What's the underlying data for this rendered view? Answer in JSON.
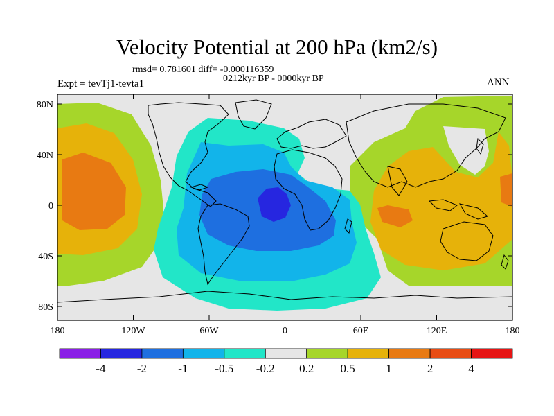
{
  "title": "Velocity Potential at 200 hPa (km2/s)",
  "stats_line": "rmsd= 0.781601 diff= -0.000116359",
  "period": "0212kyr BP - 0000kyr BP",
  "experiment": "Expt = tevTj1-tevta1",
  "season": "ANN",
  "lat_labels": [
    "80N",
    "40N",
    "0",
    "40S",
    "80S"
  ],
  "lon_labels": [
    "180",
    "120W",
    "60W",
    "0",
    "60E",
    "120E",
    "180"
  ],
  "colorbar": {
    "labels": [
      "-4",
      "-2",
      "-1",
      "-0.5",
      "-0.2",
      "0.2",
      "0.5",
      "1",
      "2",
      "4"
    ],
    "colors": [
      "#8a1fe6",
      "#2626e0",
      "#1e6fe0",
      "#12b4ea",
      "#22e6c8",
      "#e6e6e6",
      "#a6d62a",
      "#e6b20a",
      "#e87a12",
      "#e84c14",
      "#e61414"
    ]
  }
}
